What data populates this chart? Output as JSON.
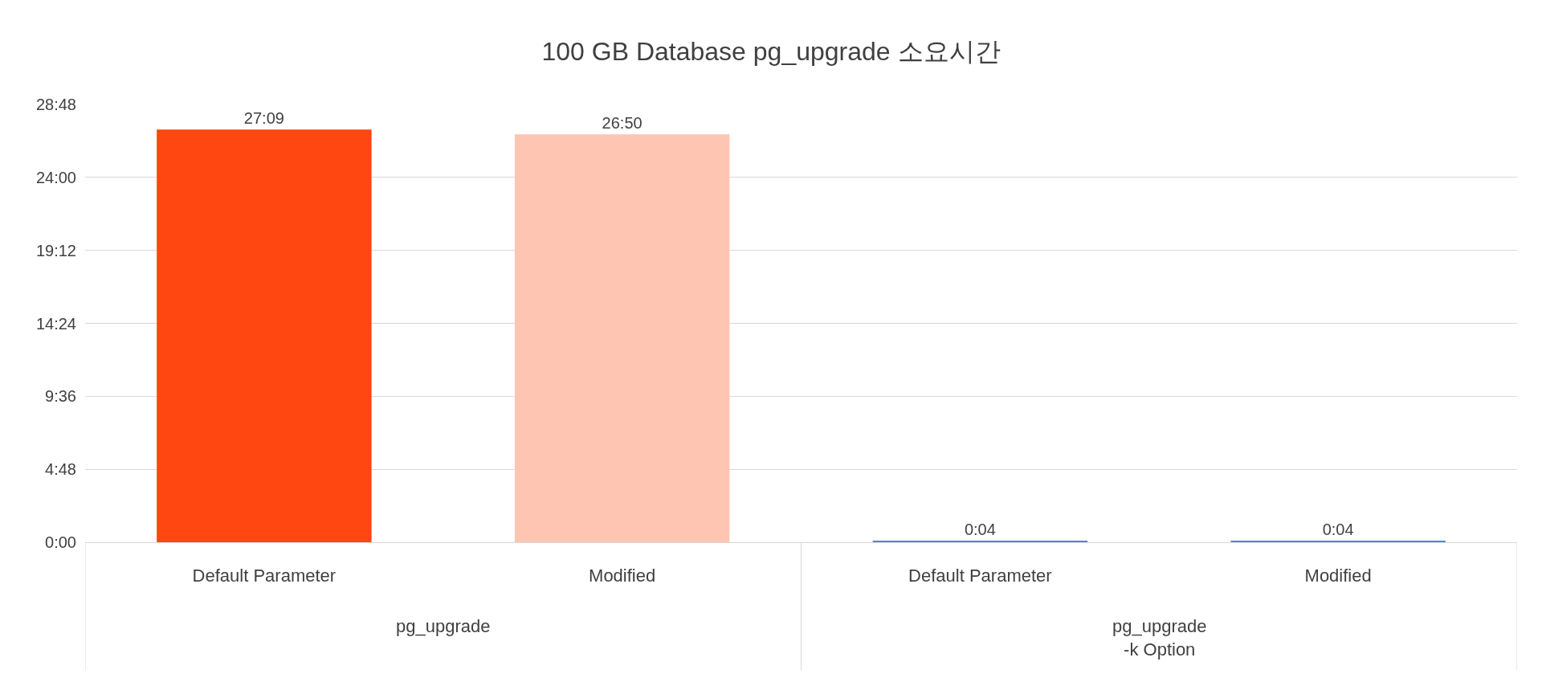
{
  "chart_data": {
    "type": "bar",
    "title": "100 GB Database pg_upgrade 소요시간",
    "categories": [
      "Default Parameter",
      "Modified",
      "Default Parameter",
      "Modified"
    ],
    "values": [
      27.15,
      26.833,
      0.067,
      0.067
    ],
    "colors": [
      "#fe4711",
      "#fec5b3",
      "#4a86e8",
      "#4a86e8"
    ],
    "value_labels": [
      "27:09",
      "26:50",
      "0:04",
      "0:04"
    ],
    "ylim": [
      0,
      28.8
    ],
    "yticks": [
      {
        "value": 0,
        "label": "0:00"
      },
      {
        "value": 4.8,
        "label": "4:48"
      },
      {
        "value": 9.6,
        "label": "9:36"
      },
      {
        "value": 14.4,
        "label": "14:24"
      },
      {
        "value": 19.2,
        "label": "19:12"
      },
      {
        "value": 24,
        "label": "24:00"
      },
      {
        "value": 28.8,
        "label": "28:48"
      }
    ],
    "grid": "y",
    "annotations": [
      "pg_upgrade",
      "pg_upgrade\n-k Option"
    ]
  }
}
